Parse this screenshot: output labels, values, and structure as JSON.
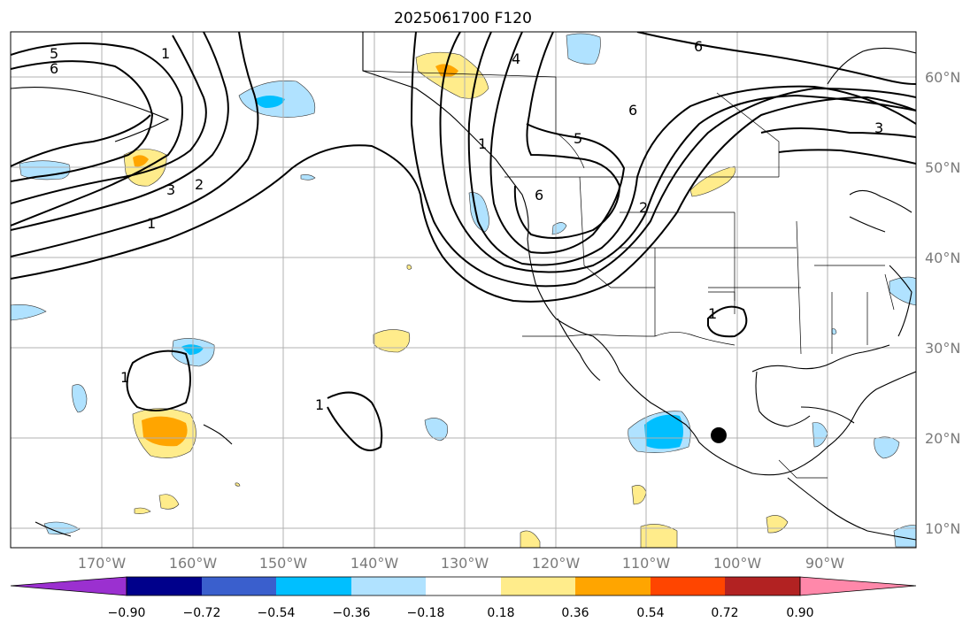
{
  "title": "2025061700 F120",
  "map": {
    "lon_labels": [
      "170°W",
      "160°W",
      "150°W",
      "140°W",
      "130°W",
      "120°W",
      "110°W",
      "100°W",
      "90°W"
    ],
    "lat_labels": [
      "60°N",
      "50°N",
      "40°N",
      "30°N",
      "20°N",
      "10°N"
    ],
    "contour_labels": [
      "5",
      "6",
      "3",
      "2",
      "1",
      "4",
      "6",
      "5",
      "6",
      "6",
      "3",
      "1",
      "1",
      "1",
      "1",
      "2",
      "1"
    ],
    "marker": {
      "lon": -102,
      "lat": 20.3
    },
    "icon": "filled-circle-marker"
  },
  "colorbar": {
    "ticks": [
      "−0.90",
      "−0.72",
      "−0.54",
      "−0.36",
      "−0.18",
      "0.18",
      "0.36",
      "0.54",
      "0.72",
      "0.90"
    ],
    "colors": [
      "#9b30d0",
      "#00008b",
      "#3a5fcd",
      "#00bfff",
      "#b0e2ff",
      "#ffffff",
      "#ffec8b",
      "#ffa500",
      "#ff4500",
      "#b22222",
      "#ff88aa"
    ]
  }
}
